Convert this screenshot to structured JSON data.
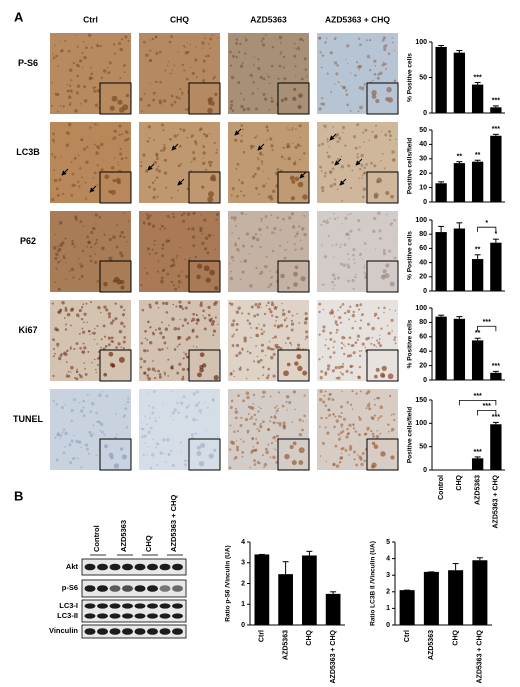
{
  "figure": {
    "panel_a": {
      "label": "A",
      "columns": [
        "Ctrl",
        "CHQ",
        "AZD5363",
        "AZD5363 + CHQ"
      ],
      "rows": [
        "P-S6",
        "LC3B",
        "P62",
        "Ki67",
        "TUNEL"
      ]
    },
    "panel_b": {
      "label": "B",
      "lanes": [
        "Control",
        "AZD5363",
        "CHQ",
        "AZD5363 + CHQ"
      ],
      "blot_rows": [
        "Akt",
        "p-S6",
        "LC3-I",
        "LC3-II",
        "Vinculin"
      ]
    }
  },
  "chart_data": [
    {
      "type": "bar",
      "ylabel": "% Positive cells",
      "categories": [
        null,
        null,
        null,
        null
      ],
      "values": [
        93,
        85,
        40,
        8
      ],
      "errors": [
        2,
        3,
        3,
        2
      ],
      "sig_labels": [
        null,
        null,
        "***",
        "***"
      ],
      "brackets": [],
      "color": "#000000",
      "ylim": [
        0,
        100
      ],
      "yticks": [
        0,
        50,
        100
      ]
    },
    {
      "type": "bar",
      "ylabel": "Positive cells/field",
      "categories": [
        null,
        null,
        null,
        null
      ],
      "values": [
        13,
        27,
        28,
        46
      ],
      "errors": [
        1,
        1,
        1,
        1
      ],
      "sig_labels": [
        null,
        "**",
        "**",
        "***"
      ],
      "brackets": [],
      "color": "#000000",
      "ylim": [
        0,
        50
      ],
      "yticks": [
        0,
        10,
        20,
        30,
        40,
        50
      ]
    },
    {
      "type": "bar",
      "ylabel": "% Positive cells",
      "categories": [
        null,
        null,
        null,
        null
      ],
      "values": [
        83,
        88,
        45,
        68
      ],
      "errors": [
        8,
        8,
        6,
        5
      ],
      "sig_labels": [
        null,
        null,
        "**",
        "*"
      ],
      "brackets": [
        {
          "text": "*",
          "span": [
            2,
            3
          ]
        }
      ],
      "color": "#000000",
      "ylim": [
        0,
        100
      ],
      "yticks": [
        0,
        20,
        40,
        60,
        80,
        100
      ]
    },
    {
      "type": "bar",
      "ylabel": "% Positive cells",
      "categories": [
        null,
        null,
        null,
        null
      ],
      "values": [
        88,
        85,
        55,
        10
      ],
      "errors": [
        2,
        3,
        3,
        2
      ],
      "sig_labels": [
        null,
        null,
        "**",
        "***"
      ],
      "brackets": [
        {
          "text": "***",
          "span": [
            2,
            3
          ]
        }
      ],
      "color": "#000000",
      "ylim": [
        0,
        100
      ],
      "yticks": [
        0,
        20,
        40,
        60,
        80,
        100
      ]
    },
    {
      "type": "bar",
      "ylabel": "Positive cells/field",
      "categories": [
        "Control",
        "CHQ",
        "AZD5363",
        "AZD5363 + CHQ"
      ],
      "values": [
        0,
        0,
        25,
        98
      ],
      "errors": [
        0,
        0,
        3,
        4
      ],
      "sig_labels": [
        null,
        null,
        "***",
        "***"
      ],
      "brackets": [
        {
          "text": "***",
          "span": [
            2,
            3
          ]
        },
        {
          "text": "***",
          "span": [
            1,
            3
          ]
        }
      ],
      "color": "#000000",
      "ylim": [
        0,
        150
      ],
      "yticks": [
        0,
        50,
        100,
        150
      ]
    },
    {
      "type": "bar",
      "ylabel": "Ratio p-S6 /Vinculin (UA)",
      "categories": [
        "Ctrl",
        "AZD5363",
        "CHQ",
        "AZD5363 + CHQ"
      ],
      "values": [
        3.4,
        2.45,
        3.35,
        1.5
      ],
      "errors": [
        0,
        0.6,
        0.2,
        0.1
      ],
      "sig_labels": [
        null,
        null,
        null,
        null
      ],
      "brackets": [],
      "color": "#000000",
      "ylim": [
        0,
        4
      ],
      "yticks": [
        0,
        1,
        2,
        3,
        4
      ]
    },
    {
      "type": "bar",
      "ylabel": "Ratio LC3B II /Vinculin (UA)",
      "categories": [
        "Ctrl",
        "AZD5363",
        "CHQ",
        "AZD5363 + CHQ"
      ],
      "values": [
        2.1,
        3.2,
        3.3,
        3.9
      ],
      "errors": [
        0,
        0,
        0.4,
        0.15
      ],
      "sig_labels": [
        null,
        null,
        null,
        null
      ],
      "brackets": [],
      "color": "#000000",
      "ylim": [
        0,
        5
      ],
      "yticks": [
        0,
        1,
        2,
        3,
        4,
        5
      ]
    }
  ]
}
